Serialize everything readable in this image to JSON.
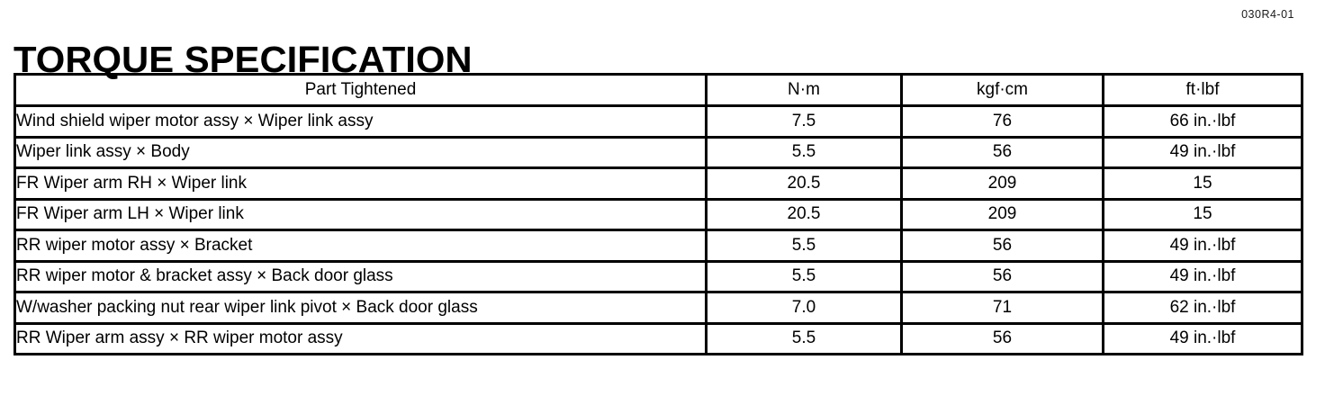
{
  "page": {
    "title": "TORQUE SPECIFICATION",
    "code": "030R4-01"
  },
  "colors": {
    "background": "#ffffff",
    "text": "#000000",
    "border": "#000000"
  },
  "table": {
    "headers": [
      "Part Tightened",
      "N·m",
      "kgf·cm",
      "ft·lbf"
    ],
    "rows": [
      [
        "Wind shield wiper motor assy × Wiper link assy",
        "7.5",
        "76",
        "66 in.·lbf"
      ],
      [
        "Wiper link assy × Body",
        "5.5",
        "56",
        "49 in.·lbf"
      ],
      [
        "FR Wiper arm RH × Wiper link",
        "20.5",
        "209",
        "15"
      ],
      [
        "FR Wiper arm LH × Wiper link",
        "20.5",
        "209",
        "15"
      ],
      [
        "RR wiper motor assy × Bracket",
        "5.5",
        "56",
        "49 in.·lbf"
      ],
      [
        "RR wiper motor & bracket assy × Back door glass",
        "5.5",
        "56",
        "49 in.·lbf"
      ],
      [
        "W/washer packing nut rear wiper link pivot × Back door glass",
        "7.0",
        "71",
        "62 in.·lbf"
      ],
      [
        "RR Wiper arm assy × RR wiper motor assy",
        "5.5",
        "56",
        "49 in.·lbf"
      ]
    ]
  }
}
